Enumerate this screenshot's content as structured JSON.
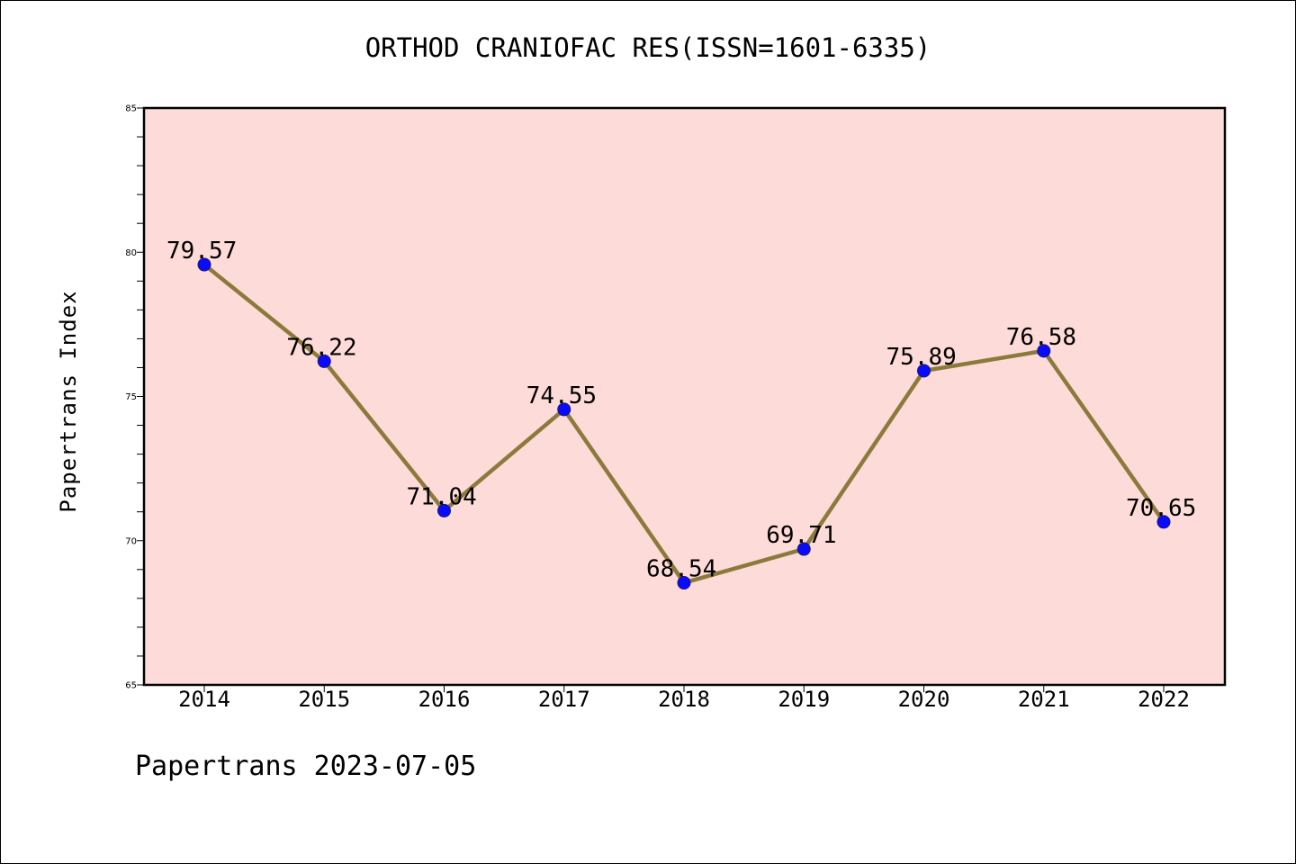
{
  "page": {
    "footer": "Papertrans 2023-07-05"
  },
  "colors": {
    "plot_background": "#fddbd8",
    "line": "#8c7a3c",
    "marker": "#0a0aff",
    "axis": "#000000"
  },
  "chart_data": {
    "type": "line",
    "title": "ORTHOD CRANIOFAC RES(ISSN=1601-6335)",
    "xlabel": "",
    "ylabel": "Papertrans Index",
    "categories": [
      "2014",
      "2015",
      "2016",
      "2017",
      "2018",
      "2019",
      "2020",
      "2021",
      "2022"
    ],
    "series": [
      {
        "values": [
          79.57,
          76.22,
          71.04,
          74.55,
          68.54,
          69.71,
          75.89,
          76.58,
          70.65
        ],
        "data_labels": [
          "79.57",
          "76.22",
          "71.04",
          "74.55",
          "68.54",
          "69.71",
          "75.89",
          "76.58",
          "70.65"
        ]
      }
    ],
    "ylim": [
      65,
      85
    ],
    "yticks": [
      65,
      70,
      75,
      80,
      85
    ],
    "ytick_labels": [
      "65",
      "70",
      "75",
      "80",
      "85"
    ],
    "minor_ytick_step": 1,
    "grid": false,
    "legend": "none",
    "markers": "circle"
  }
}
